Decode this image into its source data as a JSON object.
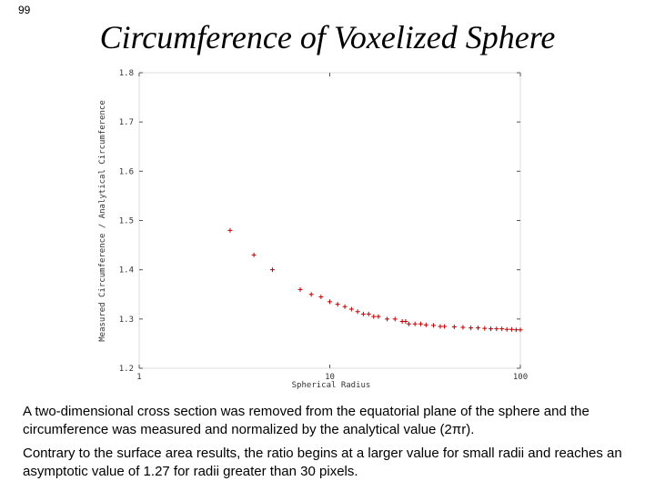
{
  "slide": {
    "number": "99",
    "title": "Circumference of Voxelized Sphere",
    "paragraphs": [
      "A two-dimensional cross section was removed from the equatorial plane of the sphere and the circumference was measured and normalized by the analytical value (2πr).",
      "Contrary to the surface area results, the ratio begins at a larger value for small radii and reaches an asymptotic value of 1.27 for radii greater than 30 pixels."
    ]
  },
  "chart_data": {
    "type": "scatter",
    "x_label": "Spherical Radius",
    "y_label": "Measured Circumference / Analytical Circumference",
    "x": [
      3,
      4,
      5,
      7,
      8,
      9,
      10,
      11,
      12,
      13,
      14,
      15,
      16,
      17,
      18,
      20,
      22,
      24,
      25,
      26,
      28,
      30,
      32,
      35,
      38,
      40,
      45,
      50,
      55,
      60,
      65,
      70,
      75,
      80,
      85,
      90,
      95,
      100
    ],
    "values": [
      1.48,
      1.43,
      1.4,
      1.36,
      1.35,
      1.345,
      1.335,
      1.33,
      1.325,
      1.32,
      1.315,
      1.31,
      1.31,
      1.305,
      1.305,
      1.3,
      1.3,
      1.295,
      1.295,
      1.29,
      1.29,
      1.29,
      1.288,
      1.287,
      1.285,
      1.285,
      1.284,
      1.283,
      1.282,
      1.282,
      1.281,
      1.28,
      1.28,
      1.28,
      1.279,
      1.279,
      1.278,
      1.278
    ],
    "color": "#c00000",
    "xlog": true,
    "xlim": [
      1,
      100
    ],
    "xticks": [
      1,
      10,
      100
    ],
    "ylim": [
      1.2,
      1.8
    ],
    "yticks": [
      1.2,
      1.3,
      1.4,
      1.5,
      1.6,
      1.7,
      1.8
    ]
  }
}
